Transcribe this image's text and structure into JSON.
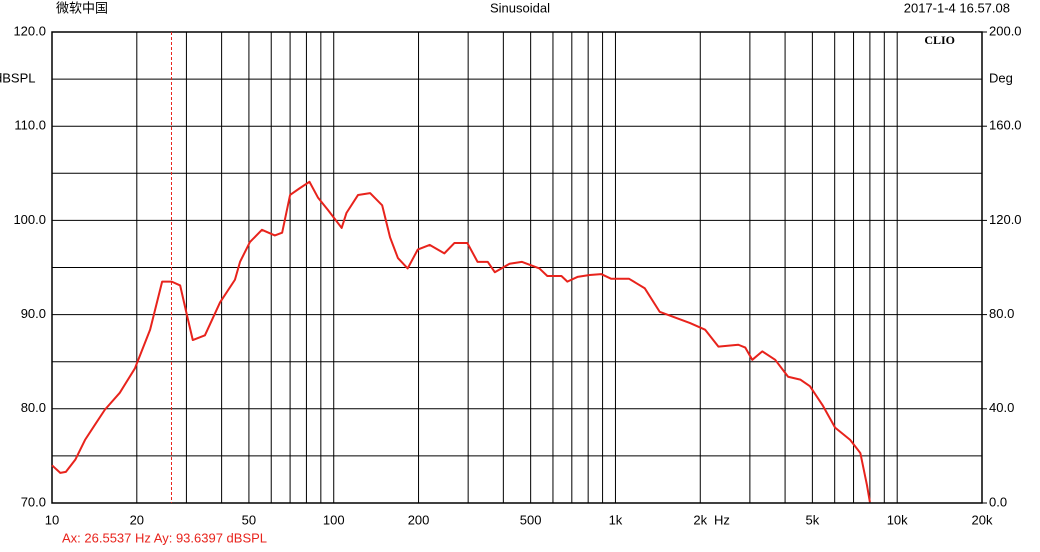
{
  "chart_data": {
    "type": "line",
    "header_left": "微软中国",
    "title": "Sinusoidal",
    "header_right": "2017-1-4 16.57.08",
    "brand": "CLIO",
    "ylabel": "dBSPL",
    "y2label": "Deg",
    "xlabel": "Hz",
    "xscale": "log",
    "xlim": [
      10,
      20000
    ],
    "xticks": [
      10,
      20,
      50,
      100,
      200,
      500,
      {
        "value": 1000,
        "label": "1k"
      },
      {
        "value": 2000,
        "label": "2k"
      },
      {
        "value": 5000,
        "label": "5k"
      },
      {
        "value": 10000,
        "label": "10k"
      },
      {
        "value": 20000,
        "label": "20k"
      }
    ],
    "x_minor_ticks": [
      30,
      40,
      60,
      70,
      80,
      90,
      300,
      400,
      600,
      700,
      800,
      900,
      3000,
      4000,
      6000,
      7000,
      8000,
      9000
    ],
    "ylim": [
      70,
      120
    ],
    "yticks": [
      {
        "value": 70,
        "label": "70.0"
      },
      {
        "value": 80,
        "label": "80.0"
      },
      {
        "value": 90,
        "label": "90.0"
      },
      {
        "value": 100,
        "label": "100.0"
      },
      {
        "value": 110,
        "label": "110.0"
      },
      {
        "value": 120,
        "label": "120.0"
      }
    ],
    "y_minor_ticks": [
      75,
      85,
      95,
      105,
      115
    ],
    "y2lim": [
      0,
      200
    ],
    "y2ticks": [
      {
        "value": 0,
        "label": "0.0"
      },
      {
        "value": 40,
        "label": "40.0"
      },
      {
        "value": 80,
        "label": "80.0"
      },
      {
        "value": 120,
        "label": "120.0"
      },
      {
        "value": 160,
        "label": "160.0"
      },
      {
        "value": 200,
        "label": "200.0"
      }
    ],
    "grid": true,
    "cursor": {
      "x": 26.5537,
      "label": "Ax: 26.5537 Hz   Ay: 93.6397 dBSPL"
    },
    "x": [
      10,
      10.7,
      11.2,
      12.1,
      13.1,
      14.2,
      15.4,
      17.4,
      19.7,
      22.3,
      24.6,
      26.6,
      28.5,
      30.1,
      31.6,
      34.9,
      39.5,
      44.6,
      46.5,
      50.4,
      55.6,
      61.8,
      65.6,
      70,
      75.6,
      82,
      88,
      95.4,
      106.7,
      111,
      122,
      134.6,
      148.6,
      158.5,
      169,
      183,
      198.7,
      219,
      247,
      268,
      298,
      324,
      352,
      373,
      421,
      465,
      537,
      573,
      643,
      675,
      733,
      810,
      890,
      966,
      1118,
      1270,
      1435,
      1840,
      2080,
      2320,
      2730,
      2890,
      3060,
      3320,
      3690,
      4100,
      4530,
      4900,
      5430,
      6020,
      6810,
      7400,
      7810,
      8000
    ],
    "series": [
      {
        "name": "dBSPL",
        "color": "#e8231c",
        "values": [
          74.0,
          73.2,
          73.3,
          74.6,
          76.7,
          78.3,
          79.9,
          81.7,
          84.3,
          88.4,
          93.5,
          93.5,
          93.1,
          90.0,
          87.3,
          87.8,
          91.3,
          93.7,
          95.6,
          97.7,
          99.0,
          98.4,
          98.7,
          102.7,
          103.4,
          104.1,
          102.4,
          101.1,
          99.2,
          100.8,
          102.7,
          102.9,
          101.6,
          98.2,
          96.0,
          94.9,
          96.9,
          97.4,
          96.5,
          97.6,
          97.6,
          95.6,
          95.6,
          94.5,
          95.4,
          95.6,
          94.9,
          94.1,
          94.1,
          93.5,
          94.0,
          94.2,
          94.3,
          93.8,
          93.8,
          92.8,
          90.3,
          89.1,
          88.4,
          86.6,
          86.8,
          86.5,
          85.2,
          86.1,
          85.2,
          83.4,
          83.1,
          82.4,
          80.4,
          78.0,
          76.7,
          75.3,
          71.9,
          70.1
        ]
      }
    ]
  }
}
